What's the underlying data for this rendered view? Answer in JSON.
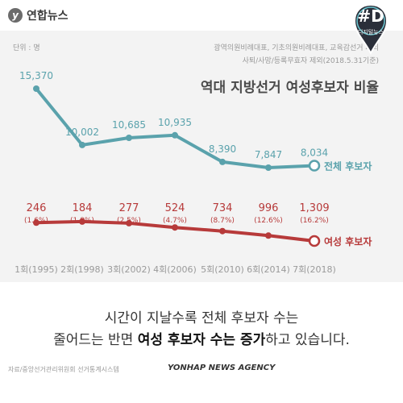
{
  "header": {
    "logo_mark": "y",
    "logo_text": "연합뉴스",
    "badge_big": "#D",
    "badge_small": "디지털뉴스"
  },
  "chart_data": {
    "type": "line",
    "title": "역대 지방선거 여성후보자 비율",
    "unit_note": "단위 : 명",
    "notes": [
      "광역의원비례대표, 기초의원비례대표, 교육감선거 제외",
      "사퇴/사망/등록무효자 제외(2018.5.31기준)"
    ],
    "categories": [
      "1회(1995)",
      "2회(1998)",
      "3회(2002)",
      "4회(2006)",
      "5회(2010)",
      "6회(2014)",
      "7회(2018)"
    ],
    "series": [
      {
        "name": "전체 후보자",
        "values": [
          15370,
          10002,
          10685,
          10935,
          8390,
          7847,
          8034
        ],
        "labels": [
          "15,370",
          "10,002",
          "10,685",
          "10,935",
          "8,390",
          "7,847",
          "8,034"
        ],
        "color": "#5aa2ac"
      },
      {
        "name": "여성 후보자",
        "values": [
          246,
          184,
          277,
          524,
          734,
          996,
          1309
        ],
        "labels": [
          "246",
          "184",
          "277",
          "524",
          "734",
          "996",
          "1,309"
        ],
        "percents": [
          "(1.6%)",
          "(1.8%)",
          "(2.5%)",
          "(4.7%)",
          "(8.7%)",
          "(12.6%)",
          "(16.2%)"
        ],
        "color": "#b73a3a"
      }
    ],
    "grid": false
  },
  "text": {
    "line1": "시간이 지날수록 전체 후보자 수는",
    "line2_a": "줄어드는 반면 ",
    "line2_b": "여성 후보자 수는 증가",
    "line2_c": "하고 있습니다."
  },
  "footer": {
    "source": "자료/중앙선거관리위원회 선거통계시스템",
    "agency": "YONHAP NEWS AGENCY"
  },
  "colors": {
    "teal": "#5aa2ac",
    "red": "#b73a3a",
    "bg": "#f3f3f3"
  }
}
